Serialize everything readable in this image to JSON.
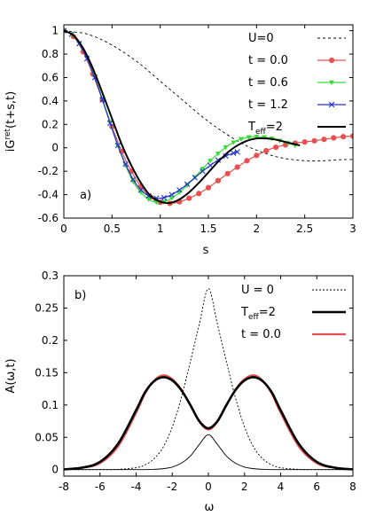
{
  "chart_data": [
    {
      "type": "line",
      "panel_label": "a)",
      "xlabel": "s",
      "ylabel_main": "iG",
      "ylabel_sup": "ret",
      "ylabel_tail": "(t+s,t)",
      "xlim": [
        0,
        3
      ],
      "ylim": [
        -0.6,
        1.05
      ],
      "xticks": [
        0,
        0.5,
        1,
        1.5,
        2,
        2.5,
        3
      ],
      "xtick_labels": [
        "0",
        "0.5",
        "1",
        "1.5",
        "2",
        "2.5",
        "3"
      ],
      "yticks": [
        -0.6,
        -0.4,
        -0.2,
        0,
        0.2,
        0.4,
        0.6,
        0.8,
        1
      ],
      "ytick_labels": [
        "-0.6",
        "-0.4",
        "-0.2",
        "0",
        "0.2",
        "0.4",
        "0.6",
        "0.8",
        "1"
      ],
      "legend_position": "top-right",
      "series": [
        {
          "name": "U=0",
          "style": "dashed",
          "color": "#000000",
          "x": [
            0,
            0.1,
            0.2,
            0.3,
            0.4,
            0.5,
            0.6,
            0.7,
            0.8,
            0.9,
            1.0,
            1.1,
            1.2,
            1.3,
            1.4,
            1.5,
            1.6,
            1.7,
            1.8,
            1.9,
            2.0,
            2.1,
            2.2,
            2.3,
            2.4,
            2.5,
            2.6,
            2.7,
            2.8,
            2.9,
            3.0
          ],
          "y": [
            1.0,
            0.99,
            0.98,
            0.955,
            0.92,
            0.877,
            0.827,
            0.77,
            0.71,
            0.64,
            0.57,
            0.5,
            0.43,
            0.36,
            0.29,
            0.225,
            0.165,
            0.11,
            0.06,
            0.015,
            -0.02,
            -0.05,
            -0.075,
            -0.092,
            -0.103,
            -0.11,
            -0.112,
            -0.11,
            -0.105,
            -0.1,
            -0.1
          ]
        },
        {
          "name": "t = 0.0",
          "style": "line-circle",
          "color": "#e8504f",
          "x": [
            0,
            0.1,
            0.2,
            0.3,
            0.4,
            0.5,
            0.6,
            0.7,
            0.8,
            0.9,
            1.0,
            1.1,
            1.2,
            1.3,
            1.4,
            1.5,
            1.6,
            1.7,
            1.8,
            1.9,
            2.0,
            2.1,
            2.2,
            2.3,
            2.4,
            2.5,
            2.6,
            2.7,
            2.8,
            2.9,
            3.0
          ],
          "y": [
            1.0,
            0.95,
            0.82,
            0.63,
            0.41,
            0.18,
            -0.03,
            -0.2,
            -0.33,
            -0.42,
            -0.465,
            -0.475,
            -0.46,
            -0.43,
            -0.39,
            -0.34,
            -0.28,
            -0.22,
            -0.165,
            -0.11,
            -0.065,
            -0.025,
            0.005,
            0.025,
            0.04,
            0.05,
            0.06,
            0.072,
            0.085,
            0.095,
            0.1
          ]
        },
        {
          "name": "t = 0.6",
          "style": "line-triangle",
          "color": "#33dd33",
          "x": [
            0,
            0.08,
            0.16,
            0.24,
            0.32,
            0.4,
            0.48,
            0.56,
            0.64,
            0.72,
            0.8,
            0.88,
            0.96,
            1.04,
            1.12,
            1.2,
            1.28,
            1.36,
            1.44,
            1.52,
            1.6,
            1.68,
            1.76,
            1.84,
            1.92,
            2.0,
            2.08,
            2.16,
            2.24,
            2.32,
            2.4
          ],
          "y": [
            1.0,
            0.97,
            0.89,
            0.77,
            0.61,
            0.42,
            0.22,
            0.02,
            -0.15,
            -0.29,
            -0.38,
            -0.44,
            -0.465,
            -0.46,
            -0.43,
            -0.38,
            -0.32,
            -0.25,
            -0.18,
            -0.11,
            -0.05,
            0.005,
            0.045,
            0.075,
            0.09,
            0.095,
            0.09,
            0.078,
            0.06,
            0.04,
            0.02
          ]
        },
        {
          "name": "t = 1.2",
          "style": "line-cross",
          "color": "#2233cc",
          "x": [
            0,
            0.08,
            0.16,
            0.24,
            0.32,
            0.4,
            0.48,
            0.56,
            0.64,
            0.72,
            0.8,
            0.88,
            0.96,
            1.04,
            1.12,
            1.2,
            1.28,
            1.36,
            1.44,
            1.52,
            1.6,
            1.68,
            1.76,
            1.8
          ],
          "y": [
            1.0,
            0.97,
            0.89,
            0.76,
            0.6,
            0.41,
            0.21,
            0.02,
            -0.14,
            -0.27,
            -0.36,
            -0.41,
            -0.43,
            -0.425,
            -0.4,
            -0.36,
            -0.31,
            -0.255,
            -0.2,
            -0.15,
            -0.105,
            -0.07,
            -0.045,
            -0.035
          ]
        },
        {
          "name_main": "T",
          "name_sub": "eff",
          "name_tail": "=2",
          "style": "thick",
          "color": "#000000",
          "x": [
            0,
            0.1,
            0.2,
            0.3,
            0.4,
            0.5,
            0.6,
            0.7,
            0.8,
            0.9,
            1.0,
            1.1,
            1.2,
            1.3,
            1.4,
            1.5,
            1.6,
            1.7,
            1.8,
            1.9,
            2.0,
            2.1,
            2.2,
            2.3,
            2.4,
            2.45
          ],
          "y": [
            1.0,
            0.96,
            0.85,
            0.68,
            0.47,
            0.25,
            0.03,
            -0.15,
            -0.3,
            -0.41,
            -0.46,
            -0.47,
            -0.44,
            -0.38,
            -0.3,
            -0.21,
            -0.12,
            -0.04,
            0.02,
            0.06,
            0.08,
            0.08,
            0.07,
            0.05,
            0.03,
            0.02
          ]
        }
      ]
    },
    {
      "type": "line",
      "panel_label": "b)",
      "xlabel": "ω",
      "ylabel": "A(ω,t)",
      "xlim": [
        -8,
        8
      ],
      "ylim": [
        -0.01,
        0.3
      ],
      "xticks": [
        -8,
        -6,
        -4,
        -2,
        0,
        2,
        4,
        6,
        8
      ],
      "xtick_labels": [
        "-8",
        "-6",
        "-4",
        "-2",
        "0",
        "2",
        "4",
        "6",
        "8"
      ],
      "yticks": [
        0,
        0.05,
        0.1,
        0.15,
        0.2,
        0.25,
        0.3
      ],
      "ytick_labels": [
        "0",
        "0.05",
        "0.1",
        "0.15",
        "0.2",
        "0.25",
        "0.3"
      ],
      "legend_position": "top-right",
      "series": [
        {
          "name": "U = 0",
          "style": "dotted",
          "color": "#000000",
          "x": [
            -8,
            -7,
            -6,
            -5,
            -4,
            -3.5,
            -3,
            -2.5,
            -2,
            -1.5,
            -1,
            -0.5,
            0,
            0.5,
            1,
            1.5,
            2,
            2.5,
            3,
            3.5,
            4,
            5,
            6,
            7,
            8
          ],
          "y": [
            0,
            0,
            0,
            0.0004,
            0.003,
            0.0075,
            0.017,
            0.035,
            0.066,
            0.111,
            0.167,
            0.225,
            0.28,
            0.225,
            0.167,
            0.111,
            0.066,
            0.035,
            0.017,
            0.0075,
            0.003,
            0.0004,
            0,
            0,
            0
          ]
        },
        {
          "name_main": "T",
          "name_sub": "eff",
          "name_tail": "=2",
          "style": "thick",
          "color": "#000000",
          "x": [
            -8,
            -7,
            -6,
            -5,
            -4,
            -3.5,
            -3,
            -2.5,
            -2,
            -1.5,
            -1,
            -0.5,
            0,
            0.5,
            1,
            1.5,
            2,
            2.5,
            3,
            3.5,
            4,
            5,
            6,
            7,
            8
          ],
          "y": [
            0.0005,
            0.003,
            0.012,
            0.04,
            0.092,
            0.12,
            0.137,
            0.143,
            0.138,
            0.123,
            0.1,
            0.075,
            0.064,
            0.075,
            0.1,
            0.123,
            0.138,
            0.143,
            0.137,
            0.12,
            0.092,
            0.04,
            0.012,
            0.003,
            0.0005
          ]
        },
        {
          "name": "t = 0.0",
          "style": "solid",
          "color": "#e8504f",
          "x": [
            -8,
            -7,
            -6,
            -5,
            -4,
            -3.5,
            -3,
            -2.5,
            -2,
            -1.5,
            -1,
            -0.5,
            0,
            0.5,
            1,
            1.5,
            2,
            2.5,
            3,
            3.5,
            4,
            5,
            6,
            7,
            8
          ],
          "y": [
            0.0005,
            0.003,
            0.01,
            0.036,
            0.088,
            0.118,
            0.138,
            0.146,
            0.14,
            0.124,
            0.1,
            0.074,
            0.062,
            0.074,
            0.1,
            0.124,
            0.14,
            0.146,
            0.138,
            0.118,
            0.088,
            0.036,
            0.01,
            0.003,
            0.0005
          ]
        },
        {
          "style": "thin",
          "color": "#000000",
          "x": [
            -8,
            -4,
            -3,
            -2.5,
            -2,
            -1.5,
            -1,
            -0.5,
            0,
            0.5,
            1,
            1.5,
            2,
            2.5,
            3,
            4,
            8
          ],
          "y": [
            0,
            0,
            0.0005,
            0.0015,
            0.004,
            0.01,
            0.021,
            0.039,
            0.054,
            0.039,
            0.021,
            0.01,
            0.004,
            0.0015,
            0.0005,
            0,
            0
          ]
        }
      ]
    }
  ]
}
